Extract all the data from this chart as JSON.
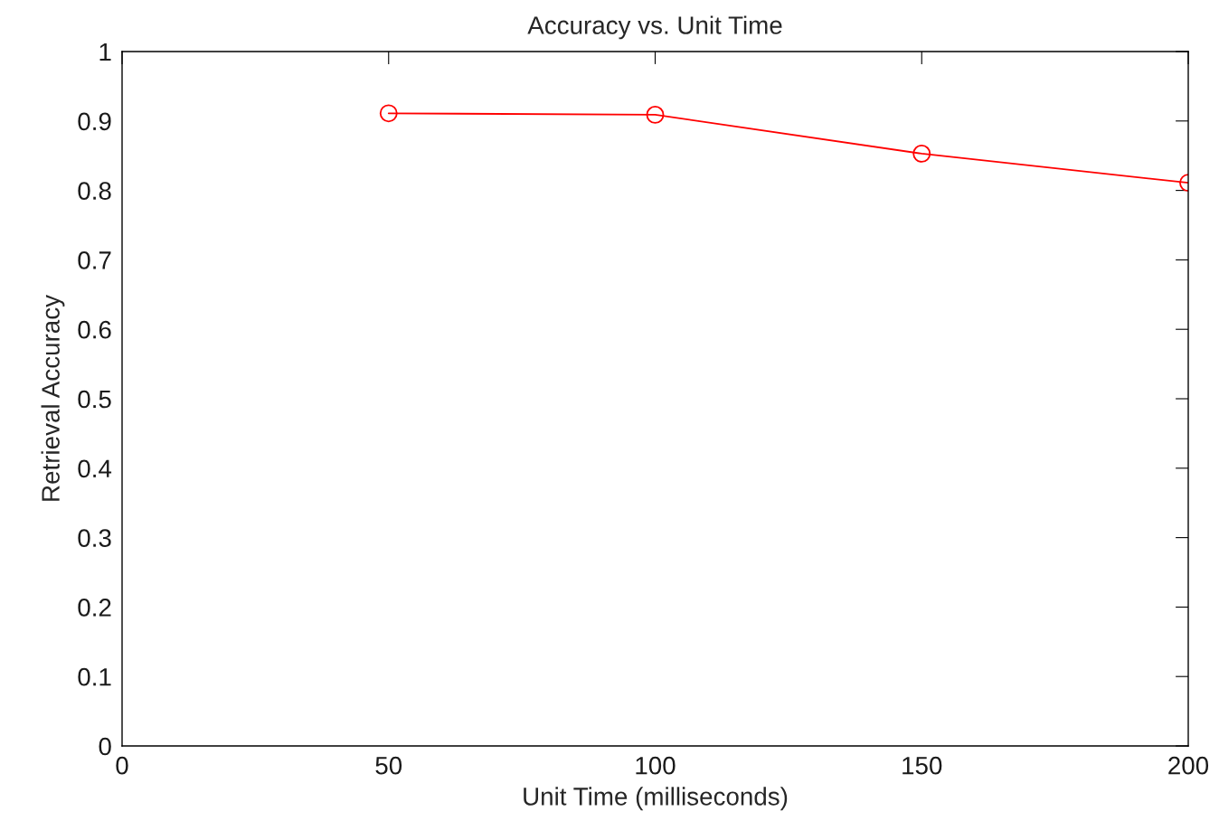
{
  "chart_data": {
    "type": "line",
    "title": "Accuracy vs. Unit Time",
    "xlabel": "Unit Time (milliseconds)",
    "ylabel": "Retrieval Accuracy",
    "x": [
      50,
      100,
      150,
      200
    ],
    "series": [
      {
        "color": "#ff0000",
        "values": [
          0.911,
          0.909,
          0.853,
          0.811
        ]
      }
    ],
    "xlim": [
      0,
      200
    ],
    "xticks": [
      0,
      50,
      100,
      150,
      200
    ],
    "ylim": [
      0,
      1
    ],
    "yticks": [
      0,
      0.1,
      0.2,
      0.3,
      0.4,
      0.5,
      0.6,
      0.7,
      0.8,
      0.9,
      1
    ],
    "marker": "circle",
    "line_style": "solid"
  }
}
